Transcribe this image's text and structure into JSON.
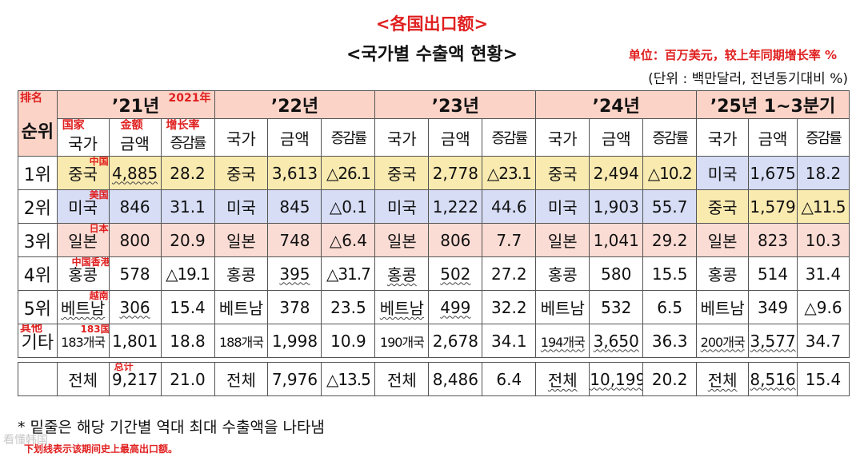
{
  "header": {
    "title_cn": "<各国出口额>",
    "title_kr": "<국가별 수출액 현황>",
    "unit_cn": "单位：百万美元，较上年同期增长率 %",
    "unit_kr": "(단위 : 백만달러, 전년동기대비 %)"
  },
  "table": {
    "rank_header_cn": "排名",
    "rank_header_kr": "순위",
    "years": [
      "’21년",
      "’22년",
      "’23년",
      "’24년",
      "’25년  1~3분기"
    ],
    "year_note_cn": "2021年",
    "growth_note_cn": "增长率",
    "country_note_cn": "国家",
    "amount_note_cn": "金额",
    "sub_headers": [
      "국가",
      "금액",
      "증감률"
    ],
    "rows": [
      {
        "rank": "1위",
        "note": "中国",
        "cells": [
          [
            "중국",
            "4,885",
            "28.2"
          ],
          [
            "중국",
            "3,613",
            "△26.1"
          ],
          [
            "중국",
            "2,778",
            "△23.1"
          ],
          [
            "중국",
            "2,494",
            "△10.2"
          ],
          [
            "미국",
            "1,675",
            "18.2"
          ]
        ]
      },
      {
        "rank": "2위",
        "note": "美国",
        "cells": [
          [
            "미국",
            "846",
            "31.1"
          ],
          [
            "미국",
            "845",
            "△0.1"
          ],
          [
            "미국",
            "1,222",
            "44.6"
          ],
          [
            "미국",
            "1,903",
            "55.7"
          ],
          [
            "중국",
            "1,579",
            "△11.5"
          ]
        ]
      },
      {
        "rank": "3위",
        "note": "日本",
        "cells": [
          [
            "일본",
            "800",
            "20.9"
          ],
          [
            "일본",
            "748",
            "△6.4"
          ],
          [
            "일본",
            "806",
            "7.7"
          ],
          [
            "일본",
            "1,041",
            "29.2"
          ],
          [
            "일본",
            "823",
            "10.3"
          ]
        ]
      },
      {
        "rank": "4위",
        "note": "中国香港",
        "cells": [
          [
            "홍콩",
            "578",
            "△19.1"
          ],
          [
            "홍콩",
            "395",
            "△31.7"
          ],
          [
            "홍콩",
            "502",
            "27.2"
          ],
          [
            "홍콩",
            "580",
            "15.5"
          ],
          [
            "홍콩",
            "514",
            "31.4"
          ]
        ]
      },
      {
        "rank": "5위",
        "note": "越南",
        "cells": [
          [
            "베트남",
            "306",
            "15.4"
          ],
          [
            "베트남",
            "378",
            "23.5"
          ],
          [
            "베트남",
            "499",
            "32.2"
          ],
          [
            "베트남",
            "532",
            "6.5"
          ],
          [
            "베트남",
            "349",
            "△9.6"
          ]
        ]
      },
      {
        "rank": "기타",
        "rank_note": "其他",
        "note": "183国",
        "cells": [
          [
            "183개국",
            "1,801",
            "18.8"
          ],
          [
            "188개국",
            "1,998",
            "10.9"
          ],
          [
            "190개국",
            "2,678",
            "34.1"
          ],
          [
            "194개국",
            "3,650",
            "36.3"
          ],
          [
            "200개국",
            "3,577",
            "34.7"
          ]
        ]
      }
    ],
    "total": {
      "note": "总计",
      "cells": [
        [
          "전체",
          "9,217",
          "21.0"
        ],
        [
          "전체",
          "7,976",
          "△13.5"
        ],
        [
          "전체",
          "8,486",
          "6.4"
        ],
        [
          "전체",
          "10,199",
          "20.2"
        ],
        [
          "전체",
          "8,516",
          "15.4"
        ]
      ]
    }
  },
  "footnote_kr": "* 밑줄은 해당 기간별 역대 최대 수출액을 나타냄",
  "footnote_cn": "下划线表示该期间史上最高出口额。",
  "watermark": "看懂韩国"
}
